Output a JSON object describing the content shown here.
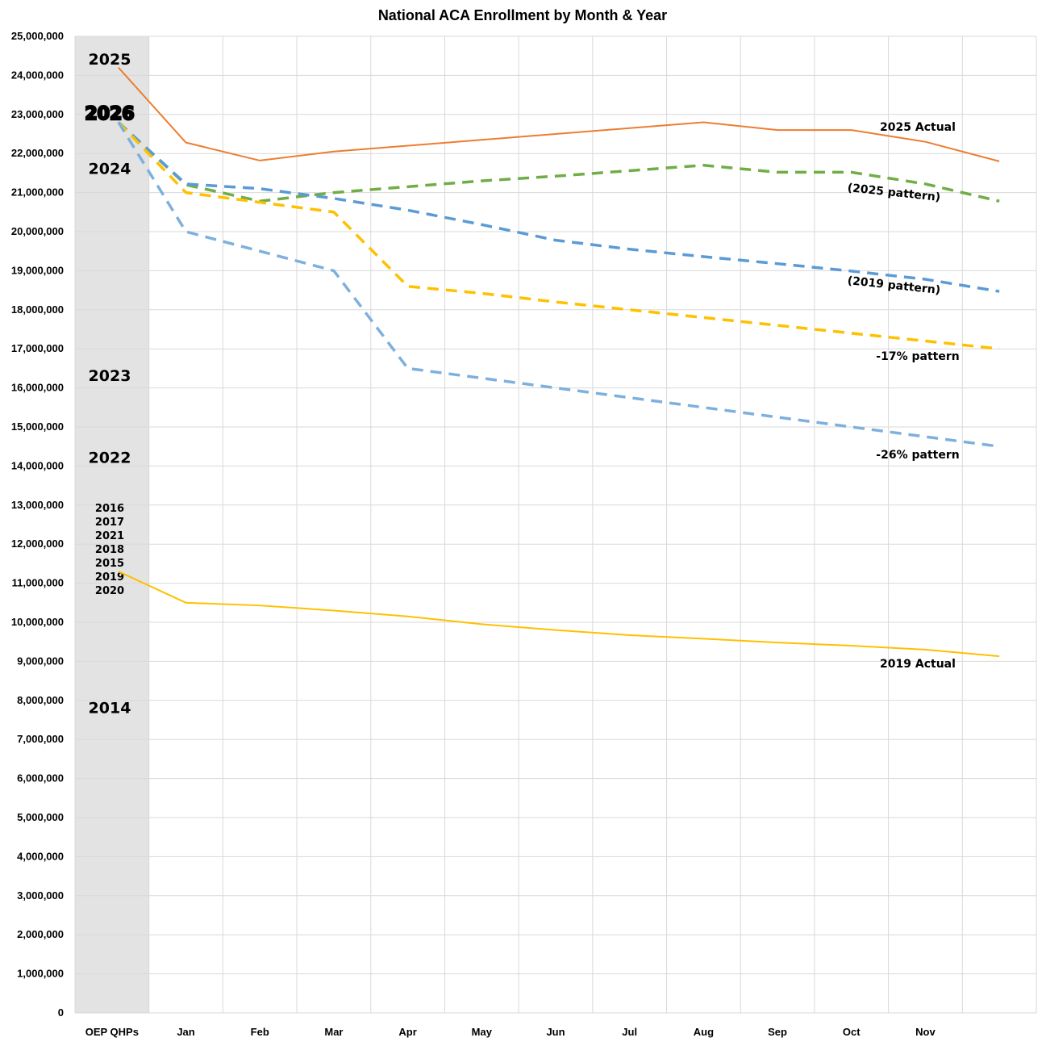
{
  "chart_data": {
    "type": "line",
    "title": "National ACA Enrollment by Month & Year",
    "xlabel": "",
    "ylabel": "",
    "categories": [
      "OEP QHPs",
      "Jan",
      "Feb",
      "Mar",
      "Apr",
      "May",
      "Jun",
      "Jul",
      "Aug",
      "Sep",
      "Oct",
      "Nov",
      ""
    ],
    "ylim": [
      0,
      25000000
    ],
    "yticks": [
      "0",
      "1,000,000",
      "2,000,000",
      "3,000,000",
      "4,000,000",
      "5,000,000",
      "6,000,000",
      "7,000,000",
      "8,000,000",
      "9,000,000",
      "10,000,000",
      "11,000,000",
      "12,000,000",
      "13,000,000",
      "14,000,000",
      "15,000,000",
      "16,000,000",
      "17,000,000",
      "18,000,000",
      "19,000,000",
      "20,000,000",
      "21,000,000",
      "22,000,000",
      "23,000,000",
      "24,000,000",
      "25,000,000"
    ],
    "grid": true,
    "legend": "none",
    "shaded_category": "OEP QHPs",
    "series": [
      {
        "name": "2025 Actual",
        "color": "#ED7D31",
        "style": "solid",
        "values": [
          24200000,
          22280000,
          21820000,
          22050000,
          22200000,
          22350000,
          22500000,
          22650000,
          22800000,
          22600000,
          22600000,
          22300000,
          21800000
        ]
      },
      {
        "name": "(2025 pattern)",
        "color": "#70AD47",
        "style": "dashed",
        "values": [
          22800000,
          21200000,
          20780000,
          21000000,
          21150000,
          21300000,
          21420000,
          21560000,
          21700000,
          21520000,
          21520000,
          21220000,
          20780000
        ]
      },
      {
        "name": "(2019 pattern)",
        "color": "#5B9BD5",
        "style": "dashed",
        "values": [
          22800000,
          21220000,
          21100000,
          20850000,
          20550000,
          20180000,
          19780000,
          19550000,
          19360000,
          19180000,
          18990000,
          18780000,
          18470000
        ]
      },
      {
        "name": "-17% pattern",
        "color": "#FFC000",
        "style": "dashed",
        "values": [
          22800000,
          21000000,
          20750000,
          20500000,
          18600000,
          18420000,
          18200000,
          18000000,
          17800000,
          17600000,
          17400000,
          17200000,
          17000000
        ]
      },
      {
        "name": "-26% pattern",
        "color": "#7EB0DE",
        "style": "dashed",
        "values": [
          22800000,
          20000000,
          19500000,
          19000000,
          16500000,
          16250000,
          16000000,
          15750000,
          15500000,
          15250000,
          15000000,
          14750000,
          14500000
        ]
      },
      {
        "name": "2019 Actual",
        "color": "#FFC000",
        "style": "solid",
        "values": [
          11300000,
          10500000,
          10430000,
          10300000,
          10150000,
          9950000,
          9800000,
          9670000,
          9580000,
          9480000,
          9400000,
          9300000,
          9130000
        ]
      }
    ],
    "annotations": [
      "2025 Actual",
      "(2025 pattern)",
      "(2019 pattern)",
      "-17% pattern",
      "-26% pattern",
      "2019 Actual"
    ],
    "year_markers": [
      {
        "label": "2025",
        "value": 24400000
      },
      {
        "label": "2026",
        "value": 23000000
      },
      {
        "label": "2024",
        "value": 21600000
      },
      {
        "label": "2023",
        "value": 16300000
      },
      {
        "label": "2022",
        "value": 14200000
      },
      {
        "label": "2016",
        "value": 12950000
      },
      {
        "label": "2017",
        "value": 12600000
      },
      {
        "label": "2021",
        "value": 12250000
      },
      {
        "label": "2018",
        "value": 11900000
      },
      {
        "label": "2015",
        "value": 11550000
      },
      {
        "label": "2019",
        "value": 11200000
      },
      {
        "label": "2020",
        "value": 10850000
      },
      {
        "label": "2014",
        "value": 7800000
      }
    ]
  }
}
